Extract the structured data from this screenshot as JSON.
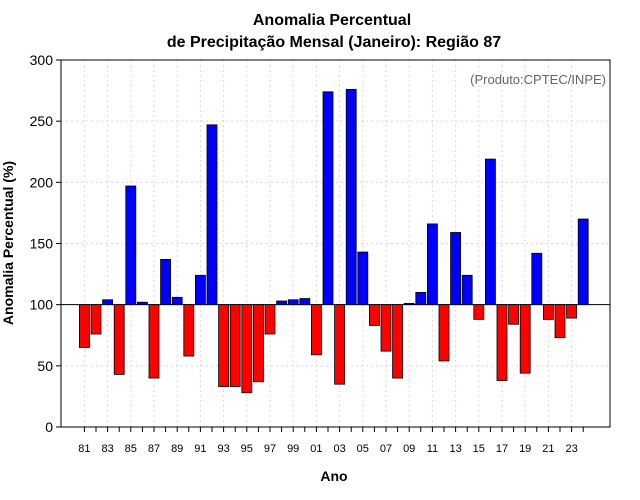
{
  "chart_data": {
    "type": "bar",
    "title": "Anomalia Percentual",
    "subtitle": "de Precipitação Mensal (Janeiro): Região 87",
    "xlabel": "Ano",
    "ylabel": "Anomalia Percentual (%)",
    "credit": "(Produto:CPTEC/INPE)",
    "baseline": 100,
    "ylim": [
      0,
      300
    ],
    "yticks": [
      "0",
      "50",
      "100",
      "150",
      "200",
      "250",
      "300"
    ],
    "grid": true,
    "colors": {
      "above": "#0000ff",
      "below": "#ff0000",
      "outline": "#000000"
    },
    "years": [
      1981,
      1982,
      1983,
      1984,
      1985,
      1986,
      1987,
      1988,
      1989,
      1990,
      1991,
      1992,
      1993,
      1994,
      1995,
      1996,
      1997,
      1998,
      1999,
      2000,
      2001,
      2002,
      2003,
      2004,
      2005,
      2006,
      2007,
      2008,
      2009,
      2010,
      2011,
      2012,
      2013,
      2014,
      2015,
      2016,
      2017,
      2018,
      2019,
      2020,
      2021,
      2022,
      2023,
      2024
    ],
    "values": [
      65,
      76,
      104,
      43,
      197,
      102,
      40,
      137,
      106,
      58,
      124,
      247,
      33,
      33,
      28,
      37,
      76,
      103,
      104,
      105,
      59,
      274,
      35,
      276,
      143,
      83,
      62,
      40,
      101,
      110,
      166,
      54,
      159,
      124,
      88,
      219,
      38,
      84,
      44,
      142,
      88,
      73,
      89,
      170
    ],
    "xtick_labels": [
      "81",
      "83",
      "85",
      "87",
      "89",
      "91",
      "93",
      "95",
      "97",
      "99",
      "01",
      "03",
      "05",
      "07",
      "09",
      "11",
      "13",
      "15",
      "17",
      "19",
      "21",
      "23"
    ]
  }
}
